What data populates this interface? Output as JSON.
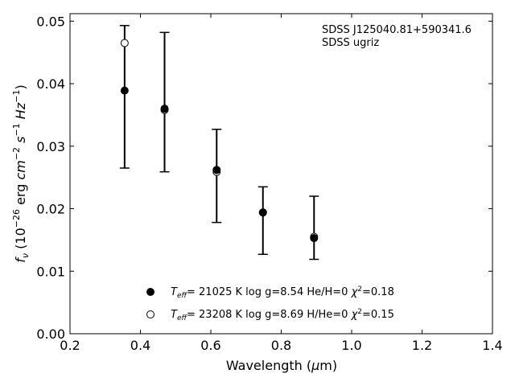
{
  "chart_data": {
    "type": "scatter",
    "title": "",
    "xlabel": "Wavelength (μm)",
    "ylabel": "f_ν (10^-26 erg cm^-2 s^-1 Hz^-1)",
    "xlim": [
      0.2,
      1.4
    ],
    "ylim": [
      0.0,
      0.0512
    ],
    "xticks": [
      0.2,
      0.4,
      0.6,
      0.8,
      1.0,
      1.2,
      1.4
    ],
    "xtick_labels": [
      "0.2",
      "0.4",
      "0.6",
      "0.8",
      "1.0",
      "1.2",
      "1.4"
    ],
    "yticks": [
      0.0,
      0.01,
      0.02,
      0.03,
      0.04,
      0.05
    ],
    "ytick_labels": [
      "0.00",
      "0.01",
      "0.02",
      "0.03",
      "0.04",
      "0.05"
    ],
    "grid": false,
    "annotation": {
      "line1": "SDSS J125040.81+590341.6",
      "line2": "SDSS ugriz",
      "placement": "top-right"
    },
    "observed": {
      "x": [
        0.3551,
        0.4686,
        0.6166,
        0.748,
        0.8932
      ],
      "y": [
        0.0389,
        0.0359,
        0.0262,
        0.0194,
        0.0152
      ],
      "yerr_low": [
        0.0265,
        0.0259,
        0.0178,
        0.0127,
        0.0119
      ],
      "yerr_high": [
        0.0493,
        0.0482,
        0.0327,
        0.0235,
        0.022
      ]
    },
    "series": [
      {
        "name": "Teff= 21025 K  log g=8.54  He/H=0  χ2=0.18",
        "marker": "filled-circle",
        "x": [
          0.3551,
          0.4686,
          0.6166,
          0.748,
          0.8932
        ],
        "y": [
          0.0389,
          0.036,
          0.0262,
          0.0194,
          0.0153
        ]
      },
      {
        "name": "Teff= 23208 K  log g=8.69  H/He=0  χ2=0.15",
        "marker": "open-circle",
        "x": [
          0.3551,
          0.4686,
          0.6166,
          0.748,
          0.8932
        ],
        "y": [
          0.0465,
          0.0358,
          0.0259,
          0.0194,
          0.0155
        ]
      }
    ],
    "legend_placement": "bottom-center",
    "legend": [
      {
        "teff_value": "= 21025 K  log g=8.54  He/H=0  ",
        "chi_value": "=0.18"
      },
      {
        "teff_value": "= 23208 K  log g=8.69  H/He=0  ",
        "chi_value": "=0.15"
      }
    ],
    "colors": {
      "marker_fill": "#000000",
      "open_fill": "#ffffff",
      "stroke": "#000000"
    }
  }
}
